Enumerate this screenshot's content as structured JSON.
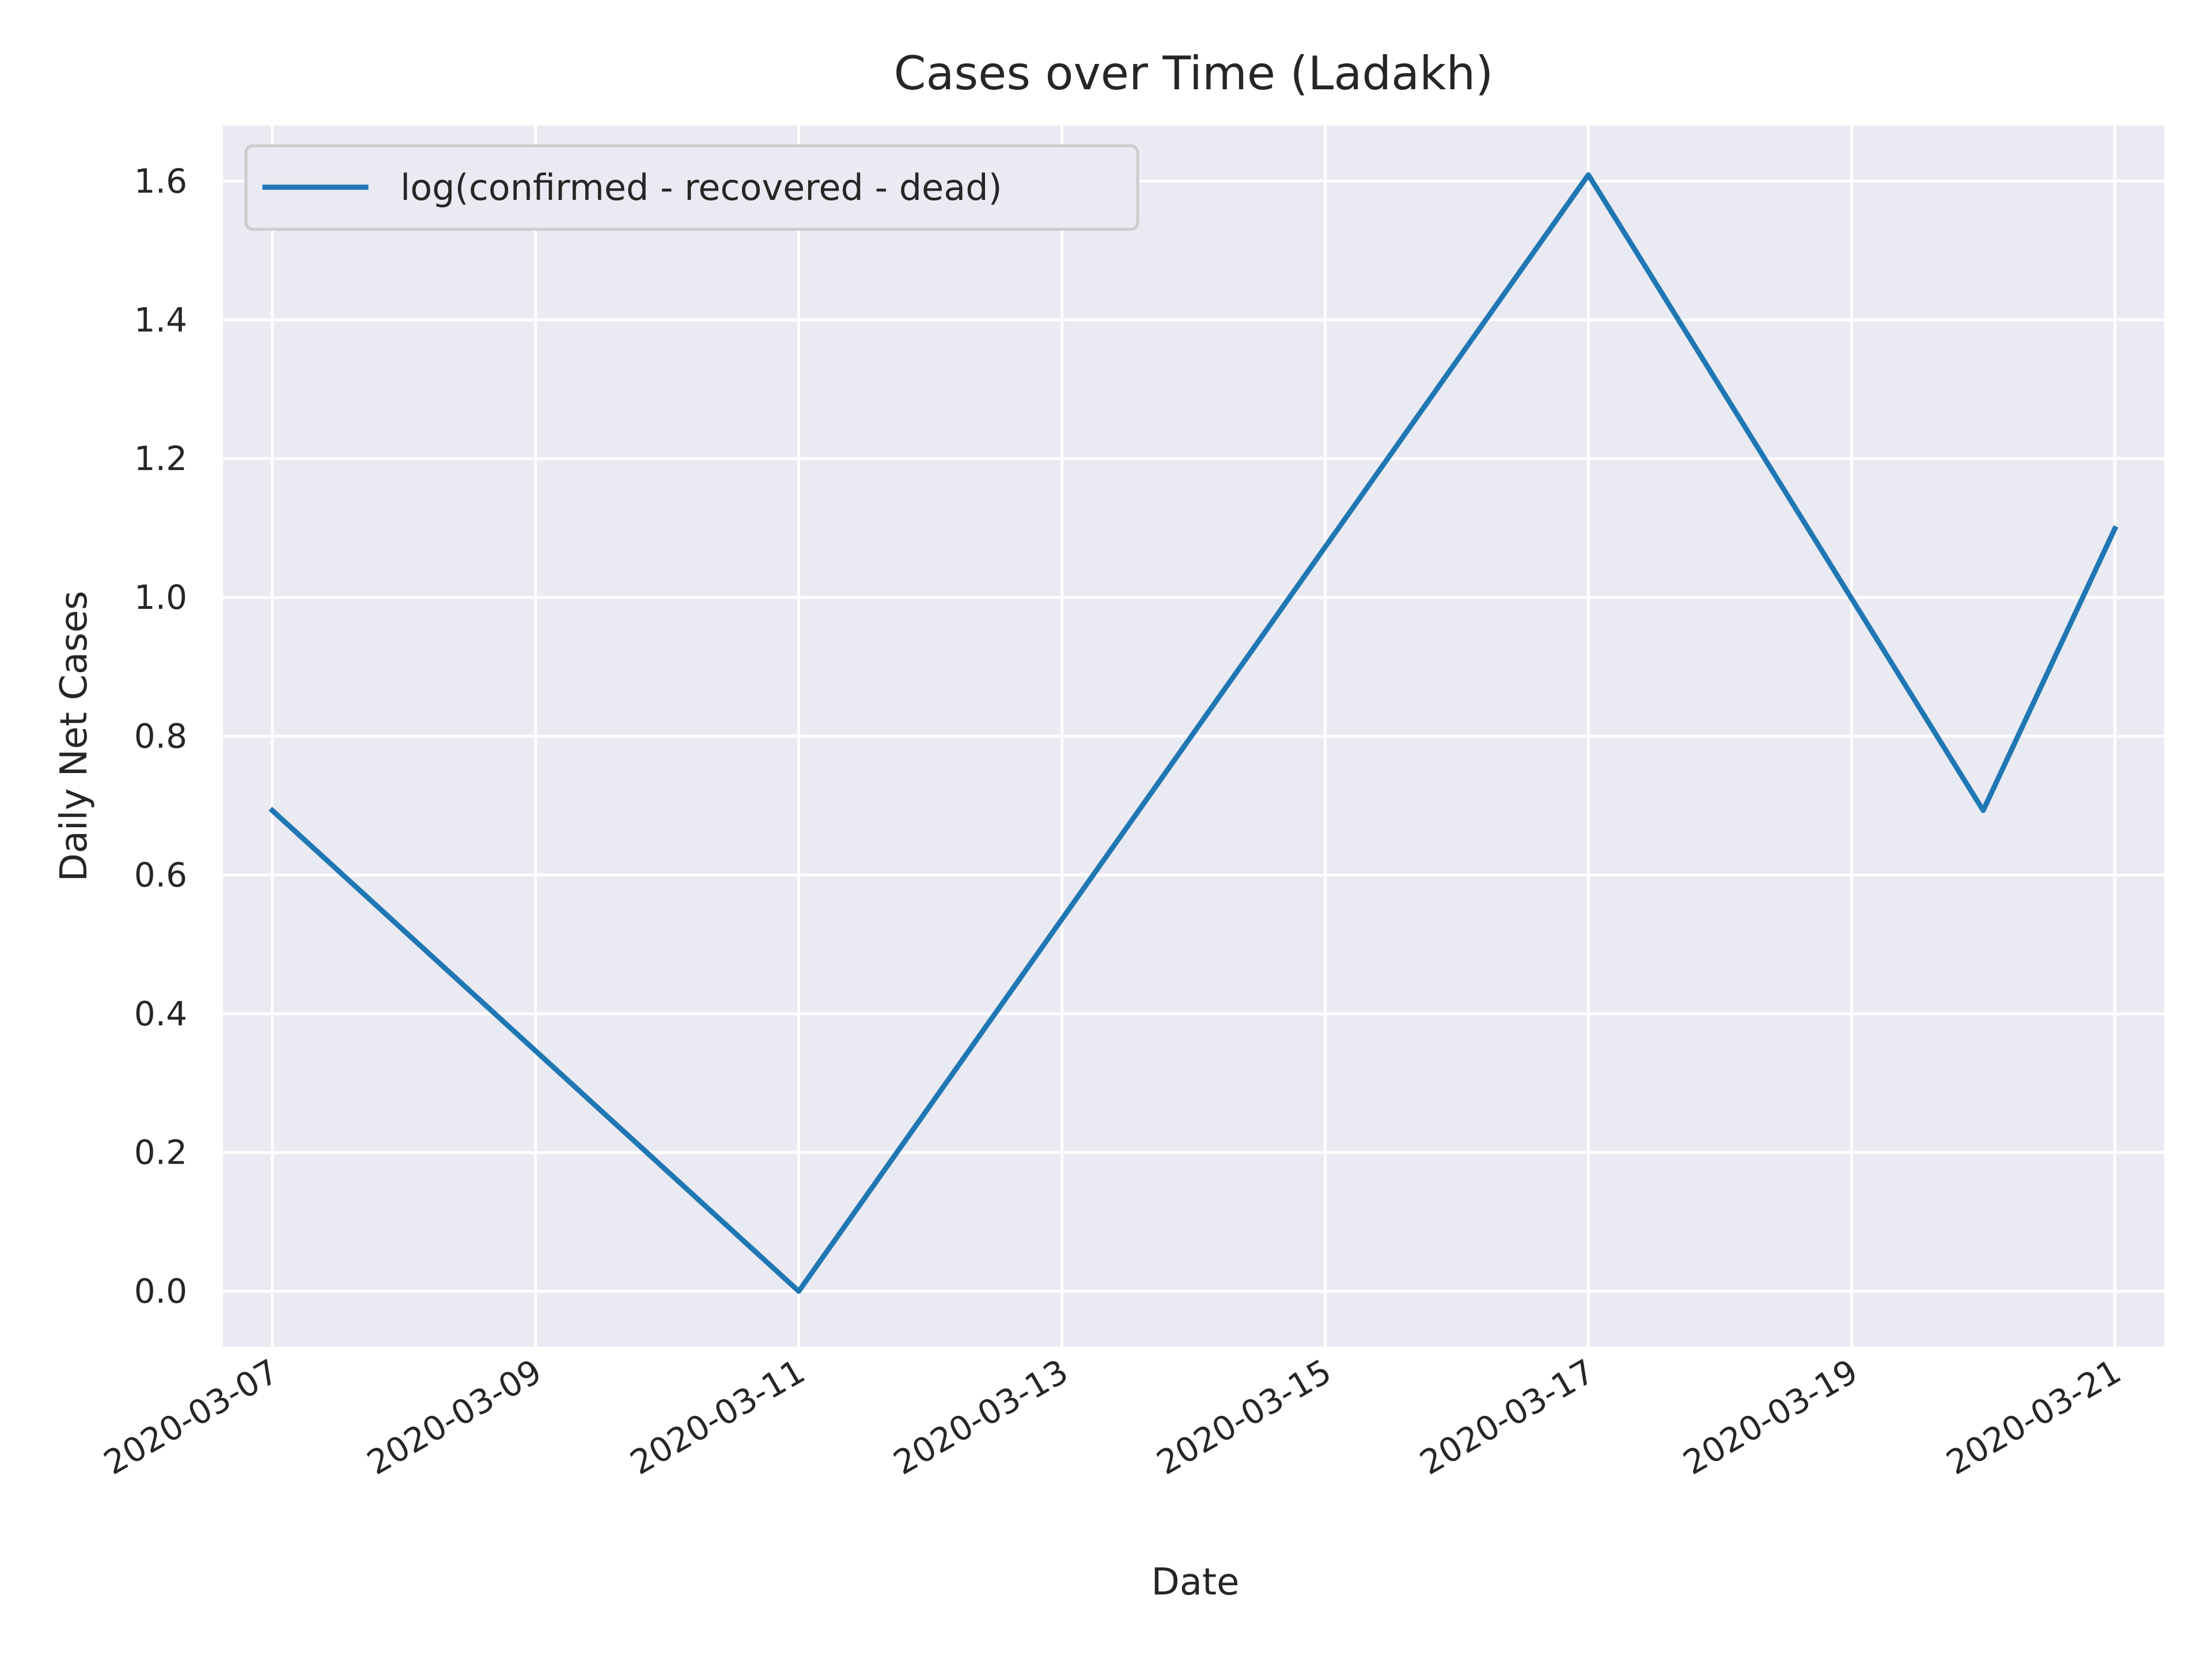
{
  "chart_data": {
    "type": "line",
    "title": "Cases over Time (Ladakh)",
    "xlabel": "Date",
    "ylabel": "Daily Net Cases",
    "x_type": "date",
    "xlim": [
      "2020-03-06T15:00",
      "2020-03-21T09:00"
    ],
    "ylim": [
      -0.08,
      1.68
    ],
    "x_ticks": [
      "2020-03-07",
      "2020-03-09",
      "2020-03-11",
      "2020-03-13",
      "2020-03-15",
      "2020-03-17",
      "2020-03-19",
      "2020-03-21"
    ],
    "y_ticks": [
      0.0,
      0.2,
      0.4,
      0.6,
      0.8,
      1.0,
      1.2,
      1.4,
      1.6
    ],
    "y_tick_labels": [
      "0.0",
      "0.2",
      "0.4",
      "0.6",
      "0.8",
      "1.0",
      "1.2",
      "1.4",
      "1.6"
    ],
    "grid": true,
    "legend_position": "top-left",
    "colors": {
      "plot_background": "#eaeaf2",
      "grid": "#ffffff",
      "series": "#1f77b4"
    },
    "series": [
      {
        "name": "log(confirmed - recovered - dead)",
        "x": [
          "2020-03-07",
          "2020-03-11",
          "2020-03-17",
          "2020-03-20",
          "2020-03-21"
        ],
        "y": [
          0.693,
          0.0,
          1.609,
          0.693,
          1.099
        ]
      }
    ]
  }
}
